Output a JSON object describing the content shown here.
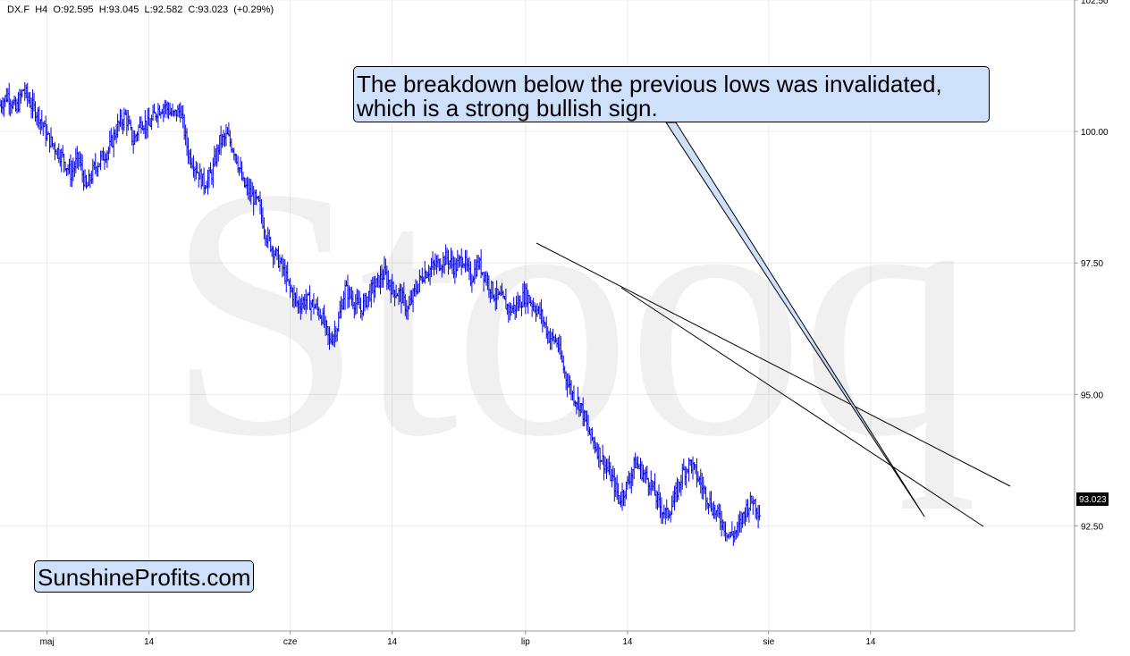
{
  "header": {
    "symbol": "DX.F",
    "interval": "H4",
    "ohlc": "O:92.595  H:93.045  L:92.582  C:93.023  (+0.29%)"
  },
  "watermark": "Stooq",
  "annotation": "The breakdown below the previous lows was invalidated, which is a strong bullish sign.",
  "brand": "SunshineProfits.com",
  "colors": {
    "price": "#0000ee",
    "trendline": "#000000",
    "callout_fill": "#cfe0fb",
    "last_price_bg": "#000000"
  },
  "chart_data": {
    "type": "line",
    "title": "DX.F H4",
    "ylim": [
      90.5,
      102.5
    ],
    "y_ticks": [
      "102.50",
      "100.00",
      "97.50",
      "95.00",
      "92.50"
    ],
    "x_ticks": [
      "maj",
      "14",
      "cze",
      "14",
      "lip",
      "14",
      "sie",
      "14"
    ],
    "x_tick_days": [
      1,
      14,
      32,
      45,
      62,
      75,
      93,
      106
    ],
    "xlim_days": [
      -5,
      132
    ],
    "grid": true,
    "last_price": "93.023",
    "series": [
      {
        "values": [
          [
            -5,
            100.5
          ],
          [
            -4,
            100.7
          ],
          [
            -3,
            100.4
          ],
          [
            -2,
            100.8
          ],
          [
            -1,
            100.5
          ],
          [
            0,
            100.3
          ],
          [
            1,
            99.9
          ],
          [
            2,
            99.7
          ],
          [
            3,
            99.5
          ],
          [
            4,
            99.2
          ],
          [
            5,
            99.5
          ],
          [
            6,
            98.9
          ],
          [
            7,
            99.3
          ],
          [
            8,
            99.5
          ],
          [
            9,
            99.7
          ],
          [
            10,
            100.1
          ],
          [
            11,
            100.3
          ],
          [
            12,
            99.8
          ],
          [
            13,
            100.2
          ],
          [
            14,
            100.1
          ],
          [
            15,
            100.4
          ],
          [
            16,
            100.5
          ],
          [
            17,
            100.3
          ],
          [
            18,
            100.4
          ],
          [
            19,
            99.6
          ],
          [
            20,
            99.3
          ],
          [
            21,
            99.0
          ],
          [
            22,
            99.2
          ],
          [
            23,
            99.8
          ],
          [
            24,
            99.9
          ],
          [
            25,
            99.6
          ],
          [
            26,
            99.0
          ],
          [
            27,
            98.8
          ],
          [
            28,
            98.6
          ],
          [
            29,
            98.0
          ],
          [
            30,
            97.7
          ],
          [
            31,
            97.4
          ],
          [
            32,
            97.0
          ],
          [
            33,
            96.7
          ],
          [
            34,
            96.8
          ],
          [
            35,
            96.7
          ],
          [
            36,
            96.5
          ],
          [
            37,
            96.0
          ],
          [
            38,
            96.3
          ],
          [
            39,
            97.0
          ],
          [
            40,
            96.8
          ],
          [
            41,
            96.6
          ],
          [
            42,
            96.9
          ],
          [
            43,
            97.1
          ],
          [
            44,
            97.3
          ],
          [
            45,
            97.0
          ],
          [
            46,
            96.9
          ],
          [
            47,
            96.6
          ],
          [
            48,
            97.0
          ],
          [
            49,
            97.3
          ],
          [
            50,
            97.4
          ],
          [
            51,
            97.5
          ],
          [
            52,
            97.6
          ],
          [
            53,
            97.4
          ],
          [
            54,
            97.6
          ],
          [
            55,
            97.2
          ],
          [
            56,
            97.5
          ],
          [
            57,
            97.2
          ],
          [
            58,
            96.9
          ],
          [
            59,
            96.8
          ],
          [
            60,
            96.6
          ],
          [
            61,
            96.7
          ],
          [
            62,
            96.9
          ],
          [
            63,
            96.7
          ],
          [
            64,
            96.5
          ],
          [
            65,
            96.1
          ],
          [
            66,
            96.0
          ],
          [
            67,
            95.4
          ],
          [
            68,
            95.0
          ],
          [
            69,
            94.8
          ],
          [
            70,
            94.3
          ],
          [
            71,
            94.0
          ],
          [
            72,
            93.7
          ],
          [
            73,
            93.4
          ],
          [
            74,
            93.0
          ],
          [
            75,
            93.3
          ],
          [
            76,
            93.7
          ],
          [
            77,
            93.5
          ],
          [
            78,
            93.3
          ],
          [
            79,
            92.9
          ],
          [
            80,
            92.7
          ],
          [
            81,
            93.0
          ],
          [
            82,
            93.5
          ],
          [
            83,
            93.7
          ],
          [
            84,
            93.4
          ],
          [
            85,
            93.1
          ],
          [
            86,
            92.8
          ],
          [
            87,
            92.6
          ],
          [
            88,
            92.3
          ],
          [
            89,
            92.4
          ],
          [
            90,
            92.8
          ],
          [
            91,
            93.0
          ],
          [
            92,
            92.7
          ]
        ]
      }
    ]
  }
}
